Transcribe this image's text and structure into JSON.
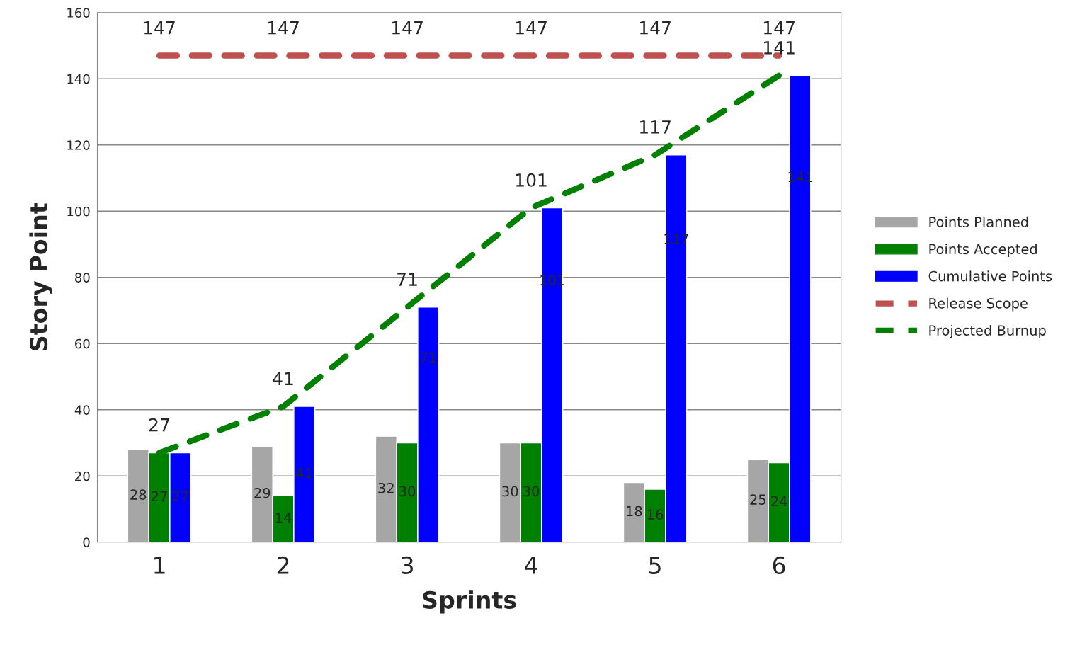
{
  "chart_data": {
    "type": "bar",
    "xlabel": "Sprints",
    "ylabel": "Story Point",
    "categories": [
      "1",
      "2",
      "3",
      "4",
      "5",
      "6"
    ],
    "series": [
      {
        "name": "Points Planned",
        "color": "#a6a6a6",
        "values": [
          28,
          29,
          32,
          30,
          18,
          25
        ]
      },
      {
        "name": "Points Accepted",
        "color": "#008000",
        "values": [
          27,
          14,
          30,
          30,
          16,
          24
        ]
      },
      {
        "name": "Cumulative Points",
        "color": "#0000ff",
        "values": [
          27,
          41,
          71,
          101,
          117,
          141
        ]
      },
      {
        "name": "Release Scope",
        "type": "line",
        "line_style": "dashed",
        "color": "#c0504d",
        "values": [
          147,
          147,
          147,
          147,
          147,
          147
        ]
      },
      {
        "name": "Projected Burnup",
        "type": "line",
        "line_style": "dashed",
        "color": "#008000",
        "values": [
          27,
          41,
          71,
          101,
          117,
          141
        ]
      }
    ],
    "ylim": [
      0,
      160
    ],
    "yticks": [
      0,
      20,
      40,
      60,
      80,
      100,
      120,
      140,
      160
    ],
    "grid": "y",
    "legend": "right",
    "data_labels": true
  }
}
